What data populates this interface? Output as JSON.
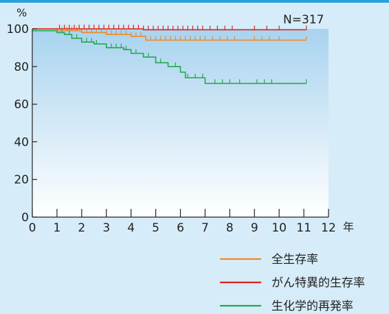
{
  "chart_data": {
    "type": "line",
    "step": true,
    "y_unit": "%",
    "x_unit": "年",
    "sample_size": "N=317",
    "xlim": [
      0,
      12
    ],
    "ylim": [
      0,
      100
    ],
    "x_ticks": [
      "0",
      "1",
      "2",
      "3",
      "4",
      "5",
      "6",
      "7",
      "8",
      "9",
      "10",
      "11",
      "12"
    ],
    "y_ticks": [
      "0",
      "20",
      "40",
      "60",
      "80",
      "100"
    ],
    "grid": false,
    "legend_position": "bottom-right",
    "series": [
      {
        "name": "全生存率",
        "color": "#f08a24",
        "steps": [
          [
            0,
            100
          ],
          [
            1,
            99
          ],
          [
            2,
            98
          ],
          [
            3,
            97
          ],
          [
            4,
            96
          ],
          [
            4.6,
            94
          ],
          [
            11.1,
            94
          ]
        ],
        "censor_x": [
          1.2,
          1.4,
          1.6,
          1.8,
          2.0,
          2.2,
          2.4,
          2.6,
          2.8,
          3.0,
          3.2,
          3.4,
          3.6,
          3.8,
          4.0,
          4.2,
          4.4,
          4.6,
          4.8,
          5.0,
          5.2,
          5.4,
          5.6,
          5.8,
          6.0,
          6.2,
          6.4,
          6.6,
          6.8,
          7.0,
          7.3,
          7.6,
          7.9,
          8.2,
          9.0,
          9.3,
          9.6,
          10.0,
          11.1
        ]
      },
      {
        "name": "がん特異的生存率",
        "color": "#e0201c",
        "steps": [
          [
            0,
            100
          ],
          [
            4.5,
            99.5
          ],
          [
            11.1,
            99.5
          ]
        ],
        "censor_x": [
          1.1,
          1.3,
          1.5,
          1.7,
          1.9,
          2.1,
          2.3,
          2.5,
          2.7,
          2.9,
          3.1,
          3.3,
          3.5,
          3.7,
          3.9,
          4.1,
          4.3,
          4.5,
          4.7,
          4.9,
          5.1,
          5.3,
          5.5,
          5.7,
          5.9,
          6.1,
          6.3,
          6.5,
          6.7,
          6.9,
          7.2,
          7.5,
          7.8,
          8.1,
          9.0,
          9.5,
          10.0,
          11.1
        ]
      },
      {
        "name": "生化学的再発率",
        "color": "#22a84a",
        "steps": [
          [
            0,
            99
          ],
          [
            0.6,
            99
          ],
          [
            1.0,
            98
          ],
          [
            1.3,
            97
          ],
          [
            1.6,
            95
          ],
          [
            2.0,
            93
          ],
          [
            2.5,
            92
          ],
          [
            3.0,
            90
          ],
          [
            3.7,
            89
          ],
          [
            4.0,
            87
          ],
          [
            4.5,
            85
          ],
          [
            5.0,
            82
          ],
          [
            5.5,
            80
          ],
          [
            6.0,
            77
          ],
          [
            6.2,
            74
          ],
          [
            7.0,
            71
          ],
          [
            11.1,
            71
          ]
        ],
        "censor_x": [
          1.2,
          1.5,
          1.8,
          2.2,
          2.4,
          2.6,
          3.2,
          3.4,
          3.6,
          3.8,
          4.2,
          4.7,
          5.2,
          5.8,
          6.3,
          6.6,
          6.9,
          7.4,
          7.7,
          8.0,
          8.4,
          9.1,
          9.4,
          9.7,
          11.1
        ]
      }
    ]
  }
}
